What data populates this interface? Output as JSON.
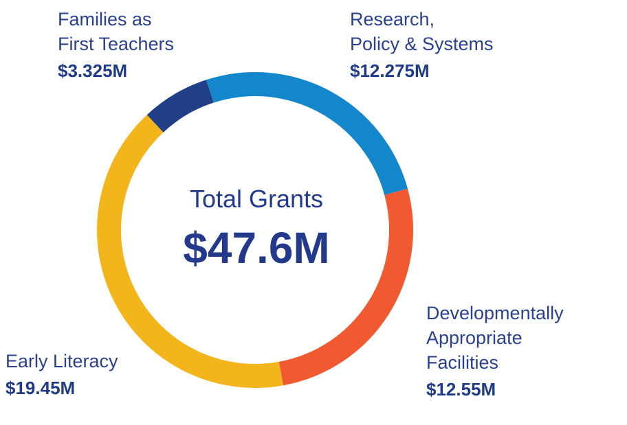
{
  "chart_data": {
    "type": "pie",
    "title": "Total Grants",
    "total": "$47.6M",
    "series": [
      {
        "name": "Research,\nPolicy & Systems",
        "value": 12.275,
        "label": "$12.275M",
        "color": "#1487cc"
      },
      {
        "name": "Developmentally\nAppropriate\nFacilities",
        "value": 12.55,
        "label": "$12.55M",
        "color": "#f15a30"
      },
      {
        "name": "Early Literacy",
        "value": 19.45,
        "label": "$19.45M",
        "color": "#f2b51c"
      },
      {
        "name": "Families as\nFirst Teachers",
        "value": 3.325,
        "label": "$3.325M",
        "color": "#213f86"
      }
    ]
  }
}
